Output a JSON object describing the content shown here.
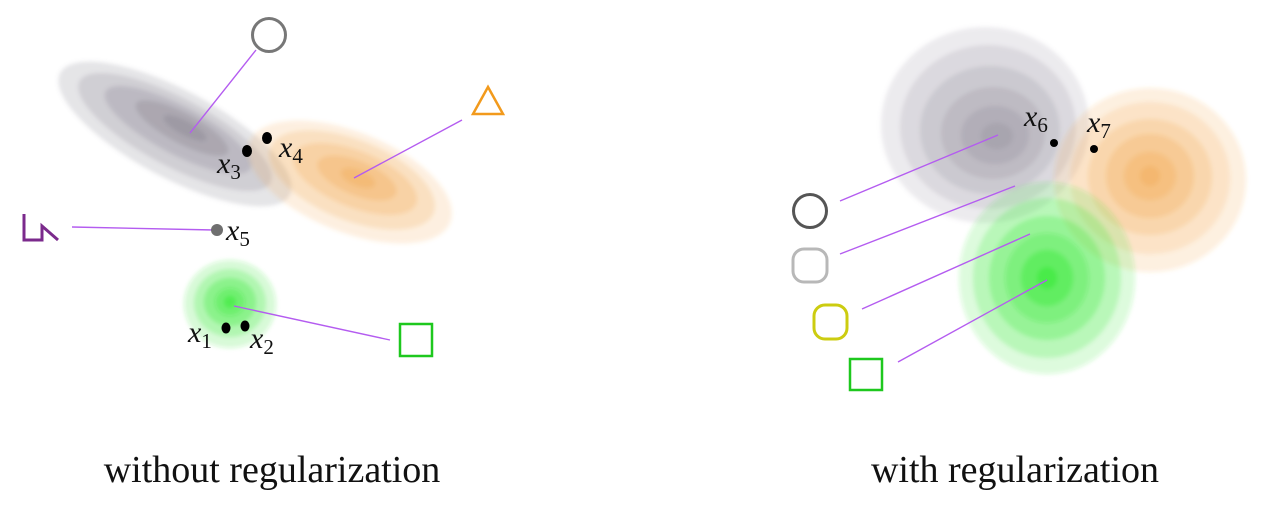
{
  "panels": [
    {
      "caption": "without regularization",
      "points": [
        {
          "name": "x",
          "index": "1"
        },
        {
          "name": "x",
          "index": "2"
        },
        {
          "name": "x",
          "index": "3"
        },
        {
          "name": "x",
          "index": "4"
        },
        {
          "name": "x",
          "index": "5"
        }
      ]
    },
    {
      "caption": "with regularization",
      "points": [
        {
          "name": "x",
          "index": "6"
        },
        {
          "name": "x",
          "index": "7"
        }
      ]
    }
  ],
  "icons": {
    "circle": "circle-icon",
    "triangle": "triangle-icon",
    "square": "square-icon",
    "step": "step-shape-icon",
    "rounded_square": "rounded-square-icon"
  },
  "colors": {
    "gray": "#8a8490",
    "orange": "#f4a040",
    "green": "#2ee82e",
    "purple": "#7b2a8c",
    "olive": "#cccc10",
    "leader": "#b45cf0"
  }
}
